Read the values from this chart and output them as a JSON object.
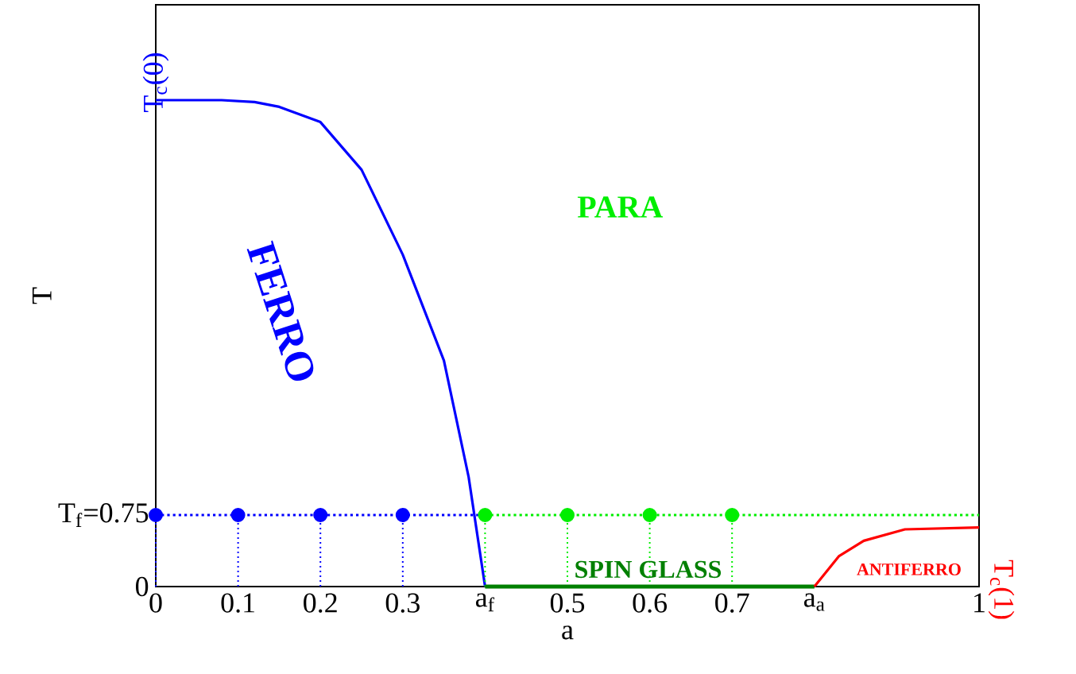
{
  "chart_data": {
    "type": "line",
    "xlabel": "a",
    "ylabel": "T",
    "xlim": [
      0,
      1
    ],
    "ylim": [
      0,
      6.1
    ],
    "xticks": [
      0,
      0.1,
      0.2,
      0.3,
      {
        "value": 0.4,
        "label": "a$_{f}$"
      },
      0.5,
      0.6,
      0.7,
      {
        "value": 0.8,
        "label": "a$_{a}$"
      },
      1
    ],
    "yticks": [
      0,
      {
        "value": 0.75,
        "label": "T$_{f}$=0.75"
      }
    ],
    "series": [
      {
        "name": "FERRO",
        "color": "#0000ff",
        "x": [
          0,
          0.08,
          0.12,
          0.15,
          0.2,
          0.25,
          0.3,
          0.35,
          0.38,
          0.4
        ],
        "values": [
          5.1,
          5.1,
          5.08,
          5.03,
          4.87,
          4.37,
          3.48,
          2.37,
          1.15,
          0
        ]
      },
      {
        "color": "#0000ff",
        "line_style": "dotted",
        "x": [
          0,
          0.4
        ],
        "values": [
          0.75,
          0.75
        ]
      },
      {
        "type": "lollipop",
        "color": "#0000ff",
        "line_style": "dotted",
        "marker": "circle",
        "x": [
          0,
          0.1,
          0.2,
          0.3
        ],
        "values": [
          0.75,
          0.75,
          0.75,
          0.75
        ]
      },
      {
        "name": "PARA",
        "color": "#00ee00",
        "line_style": "dotted",
        "x": [
          0.4,
          1
        ],
        "values": [
          0.75,
          0.75
        ]
      },
      {
        "type": "lollipop",
        "color": "#00ee00",
        "line_style": "dotted",
        "marker": "circle",
        "x": [
          0.4,
          0.5,
          0.6,
          0.7
        ],
        "values": [
          0.75,
          0.75,
          0.75,
          0.75
        ]
      },
      {
        "name": "SPIN GLASS",
        "color": "#008000",
        "x": [
          0.4,
          0.8
        ],
        "values": [
          0,
          0
        ]
      },
      {
        "name": "ANTIFERRO",
        "color": "#ff0000",
        "x": [
          0.8,
          0.83,
          0.86,
          0.91,
          1
        ],
        "values": [
          0,
          0.32,
          0.48,
          0.6,
          0.62
        ]
      }
    ],
    "annotations": [
      {
        "text": "T$_{c}$(0)",
        "x": 0,
        "y": 5.1
      },
      {
        "text": "T$_{c}$(1)",
        "x": 1,
        "y": 0.62
      }
    ]
  }
}
